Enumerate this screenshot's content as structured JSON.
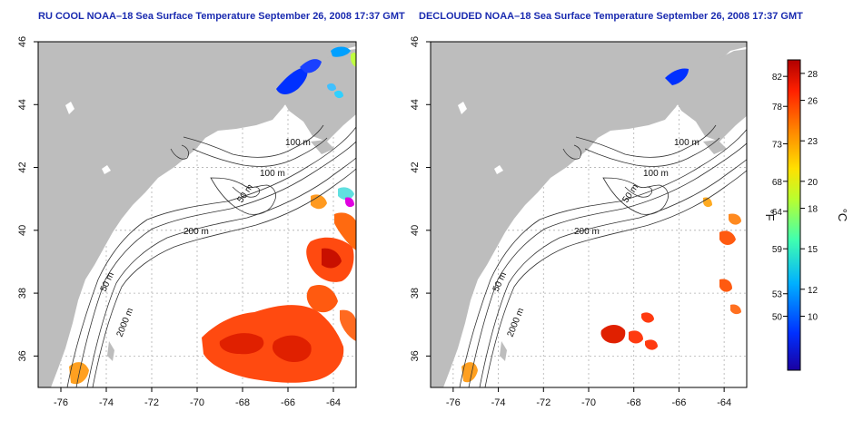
{
  "panels": [
    {
      "title": "RU COOL NOAA–18 Sea Surface Temperature September 26, 2008 17:37 GMT",
      "contour_labels": [
        "100 m",
        "100 m",
        "50 m",
        "200 m",
        "50 m",
        "2000 m"
      ],
      "x_ticks": [
        "-76",
        "-74",
        "-72",
        "-70",
        "-68",
        "-66",
        "-64"
      ],
      "y_ticks": [
        "46",
        "44",
        "42",
        "40",
        "38",
        "36"
      ]
    },
    {
      "title": "DECLOUDED NOAA–18 Sea Surface Temperature September 26, 2008 17:37 GMT",
      "contour_labels": [
        "100 m",
        "100 m",
        "50 m",
        "200 m",
        "50 m",
        "2000 m"
      ],
      "x_ticks": [
        "-76",
        "-74",
        "-72",
        "-70",
        "-68",
        "-66",
        "-64"
      ],
      "y_ticks": [
        "46",
        "44",
        "42",
        "40",
        "38",
        "36"
      ]
    }
  ],
  "map_extent": {
    "lon": [
      -77.0,
      -63.0
    ],
    "lat": [
      35.0,
      46.0
    ]
  },
  "colorbar": {
    "unit_f": "°F",
    "unit_c": "°C",
    "f_ticks": [
      "82",
      "78",
      "73",
      "68",
      "64",
      "59",
      "53",
      "50"
    ],
    "f_values": [
      82,
      78,
      73,
      68,
      64,
      59,
      53,
      50
    ],
    "c_ticks": [
      "28",
      "26",
      "23",
      "20",
      "18",
      "15",
      "12",
      "10"
    ],
    "c_values": [
      28,
      26,
      23,
      20,
      18,
      15,
      12,
      10
    ],
    "range_c": [
      6,
      29
    ],
    "colors": [
      "#1a00a0",
      "#0030ff",
      "#00b0ff",
      "#40ffb0",
      "#b8ff30",
      "#ffe000",
      "#ff8000",
      "#ff2000",
      "#b00000"
    ]
  }
}
